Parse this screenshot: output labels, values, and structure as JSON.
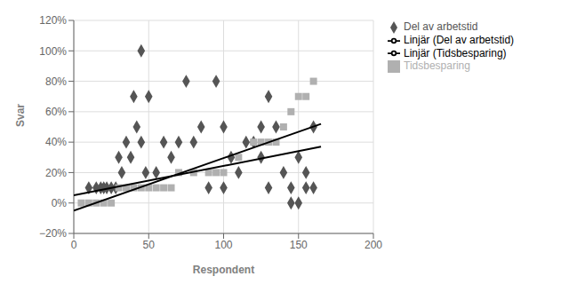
{
  "chart_data": {
    "type": "scatter",
    "xlabel": "Respondent",
    "ylabel": "Svar",
    "xlim": [
      0,
      200
    ],
    "ylim": [
      -0.2,
      1.2
    ],
    "xticks": [
      0,
      50,
      100,
      150,
      200
    ],
    "yticks": [
      {
        "value": -0.2,
        "label": "−20%"
      },
      {
        "value": 0.0,
        "label": "0%"
      },
      {
        "value": 0.2,
        "label": "20%"
      },
      {
        "value": 0.4,
        "label": "40%"
      },
      {
        "value": 0.6,
        "label": "60%"
      },
      {
        "value": 0.8,
        "label": "80%"
      },
      {
        "value": 1.0,
        "label": "100%"
      },
      {
        "value": 1.2,
        "label": "120%"
      }
    ],
    "grid": true,
    "legend": "right",
    "series": [
      {
        "name": "Del av arbetstid",
        "type": "scatter",
        "marker": "diamond",
        "color": "#555555",
        "x": [
          10,
          15,
          18,
          20,
          22,
          25,
          28,
          30,
          32,
          35,
          38,
          40,
          42,
          45,
          45,
          48,
          50,
          55,
          60,
          65,
          70,
          75,
          80,
          85,
          90,
          95,
          100,
          100,
          105,
          110,
          115,
          120,
          125,
          125,
          130,
          130,
          135,
          140,
          145,
          145,
          150,
          150,
          155,
          155,
          160,
          160
        ],
        "values": [
          0.1,
          0.1,
          0.1,
          0.1,
          0.1,
          0.1,
          0.1,
          0.3,
          0.2,
          0.4,
          0.3,
          0.7,
          0.5,
          0.4,
          1.0,
          0.2,
          0.7,
          0.2,
          0.4,
          0.3,
          0.4,
          0.8,
          0.4,
          0.5,
          0.1,
          0.8,
          0.5,
          0.1,
          0.3,
          0.2,
          0.4,
          0.4,
          0.5,
          0.3,
          0.7,
          0.1,
          0.5,
          0.2,
          0.1,
          0.0,
          0.0,
          0.3,
          0.1,
          0.2,
          0.5,
          0.1
        ]
      },
      {
        "name": "Tidsbesparing",
        "type": "scatter",
        "marker": "square",
        "color": "#b0b0b0",
        "x": [
          5,
          10,
          15,
          20,
          25,
          30,
          35,
          40,
          45,
          50,
          55,
          60,
          65,
          70,
          80,
          90,
          95,
          100,
          110,
          120,
          125,
          130,
          135,
          140,
          145,
          150,
          155,
          160
        ],
        "values": [
          0.0,
          0.0,
          0.0,
          0.0,
          0.0,
          0.1,
          0.1,
          0.1,
          0.1,
          0.1,
          0.1,
          0.1,
          0.1,
          0.2,
          0.2,
          0.2,
          0.2,
          0.2,
          0.3,
          0.4,
          0.4,
          0.4,
          0.4,
          0.5,
          0.6,
          0.7,
          0.7,
          0.8
        ]
      },
      {
        "name": "Linjär (Del av arbetstid)",
        "type": "line",
        "line_style": "solid",
        "color": "#000000",
        "x": [
          0,
          165
        ],
        "values": [
          0.05,
          0.37
        ]
      },
      {
        "name": "Linjär (Tidsbesparing)",
        "type": "line",
        "line_style": "solid",
        "color": "#000000",
        "x": [
          0,
          165
        ],
        "values": [
          -0.05,
          0.52
        ]
      }
    ]
  }
}
